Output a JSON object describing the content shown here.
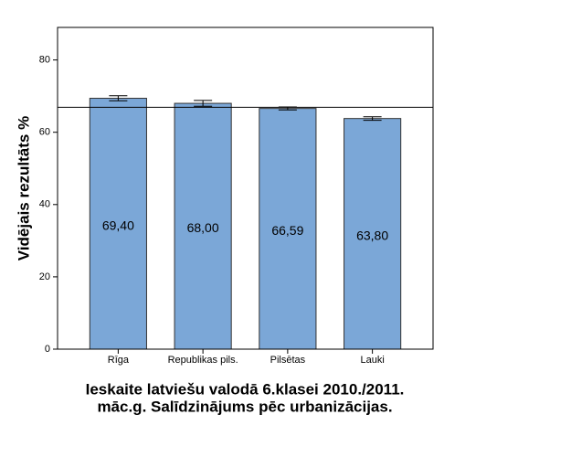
{
  "chart_data": {
    "type": "bar",
    "y_label": "Vidējais rezultāts %",
    "x_label": [
      "Ieskaite latviešu valodā 6.klasei 2010./2011.",
      "māc.g. Salīdzinājums pēc urbanizācijas."
    ],
    "categories": [
      "Rīga",
      "Republikas pils.",
      "Pilsētas",
      "Lauki"
    ],
    "values": [
      69.4,
      68.0,
      66.59,
      63.8
    ],
    "value_labels": [
      "69,40",
      "68,00",
      "66,59",
      "63,80"
    ],
    "errors": [
      0.7,
      0.8,
      0.4,
      0.5
    ],
    "reference_line": 66.9,
    "color": "#7ba7d7",
    "ylim": [
      0,
      89
    ],
    "yticks": [
      0,
      20,
      40,
      60,
      80
    ]
  }
}
